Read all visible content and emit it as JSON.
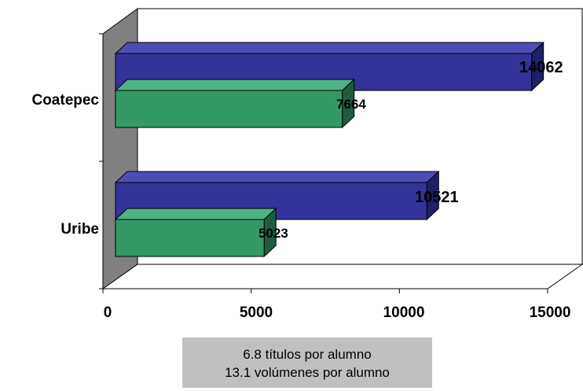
{
  "chart_data": {
    "type": "bar",
    "orientation": "horizontal",
    "three_d": true,
    "categories": [
      "Coatepec",
      "Uribe"
    ],
    "series": [
      {
        "values": [
          14062,
          10521
        ],
        "color": "#333399"
      },
      {
        "values": [
          7664,
          5023
        ],
        "color": "#339966"
      }
    ],
    "data_labels": [
      [
        "14062",
        "10521"
      ],
      [
        "7664",
        "5023"
      ]
    ],
    "xlim": [
      0,
      15000
    ],
    "x_ticks": [
      "0",
      "5000",
      "10000",
      "15000"
    ],
    "grid": false,
    "legend": "none"
  },
  "note": {
    "line1": "6.8 títulos por alumno",
    "line2": "13.1 volúmenes por alumno"
  }
}
